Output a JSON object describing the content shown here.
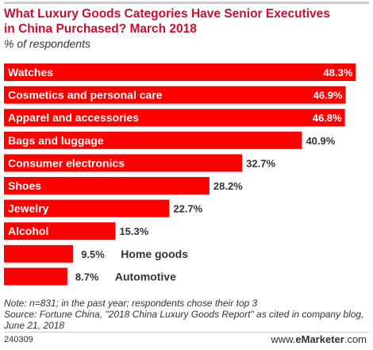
{
  "header": {
    "title": "What Luxury Goods Categories Have Senior Executives in China Purchased? March 2018",
    "subtitle": "% of respondents"
  },
  "chart_data": {
    "type": "bar",
    "orientation": "horizontal",
    "title": "What Luxury Goods Categories Have Senior Executives in China Purchased? March 2018",
    "subtitle": "% of respondents",
    "categories": [
      "Watches",
      "Cosmetics and personal care",
      "Apparel and accessories",
      "Bags and luggage",
      "Consumer electronics",
      "Shoes",
      "Jewelry",
      "Alcohol",
      "Home goods",
      "Automotive"
    ],
    "values": [
      48.3,
      46.9,
      46.8,
      40.9,
      32.7,
      28.2,
      22.7,
      15.3,
      9.5,
      8.7
    ],
    "value_labels": [
      "48.3%",
      "46.9%",
      "46.8%",
      "40.9%",
      "32.7%",
      "28.2%",
      "22.7%",
      "15.3%",
      "9.5%",
      "8.7%"
    ],
    "xlim": [
      0,
      50
    ],
    "grid": false,
    "bar_color": "#ff0000"
  },
  "footer": {
    "note": "Note: n=831; in the past year; respondents chose their top 3",
    "source": "Source: Fortune China, \"2018 China Luxury Goods Report\" as cited in company blog, June 21, 2018",
    "chart_id": "240309",
    "brand_web": "www.",
    "brand_name": "eMarketer",
    "brand_tld": ".com"
  },
  "colors": {
    "title": "#c8102e",
    "bar": "#ff0000",
    "text": "#333333"
  }
}
